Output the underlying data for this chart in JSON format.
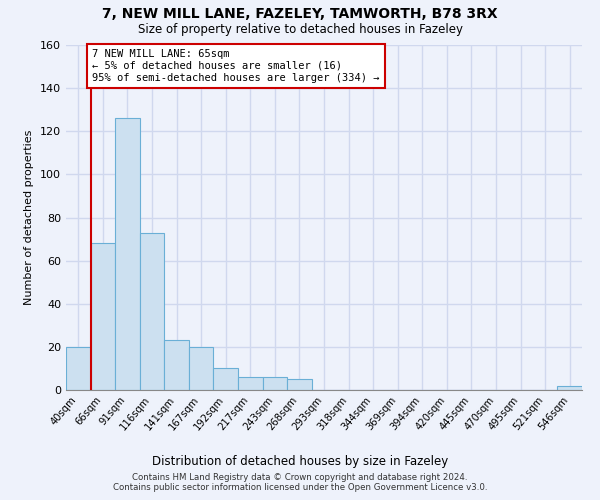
{
  "title": "7, NEW MILL LANE, FAZELEY, TAMWORTH, B78 3RX",
  "subtitle": "Size of property relative to detached houses in Fazeley",
  "xlabel": "Distribution of detached houses by size in Fazeley",
  "ylabel": "Number of detached properties",
  "bar_labels": [
    "40sqm",
    "66sqm",
    "91sqm",
    "116sqm",
    "141sqm",
    "167sqm",
    "192sqm",
    "217sqm",
    "243sqm",
    "268sqm",
    "293sqm",
    "318sqm",
    "344sqm",
    "369sqm",
    "394sqm",
    "420sqm",
    "445sqm",
    "470sqm",
    "495sqm",
    "521sqm",
    "546sqm"
  ],
  "bar_heights": [
    20,
    68,
    126,
    73,
    23,
    20,
    10,
    6,
    6,
    5,
    0,
    0,
    0,
    0,
    0,
    0,
    0,
    0,
    0,
    0,
    2
  ],
  "bar_color": "#cce0f0",
  "bar_edge_color": "#6aafd6",
  "ylim": [
    0,
    160
  ],
  "yticks": [
    0,
    20,
    40,
    60,
    80,
    100,
    120,
    140,
    160
  ],
  "red_line_x": 0.5,
  "annotation_text": "7 NEW MILL LANE: 65sqm\n← 5% of detached houses are smaller (16)\n95% of semi-detached houses are larger (334) →",
  "annotation_box_color": "#ffffff",
  "annotation_box_edge_color": "#cc0000",
  "footer_line1": "Contains HM Land Registry data © Crown copyright and database right 2024.",
  "footer_line2": "Contains public sector information licensed under the Open Government Licence v3.0.",
  "background_color": "#eef2fb",
  "plot_background_color": "#eef2fb",
  "grid_color": "#d0d8ee"
}
